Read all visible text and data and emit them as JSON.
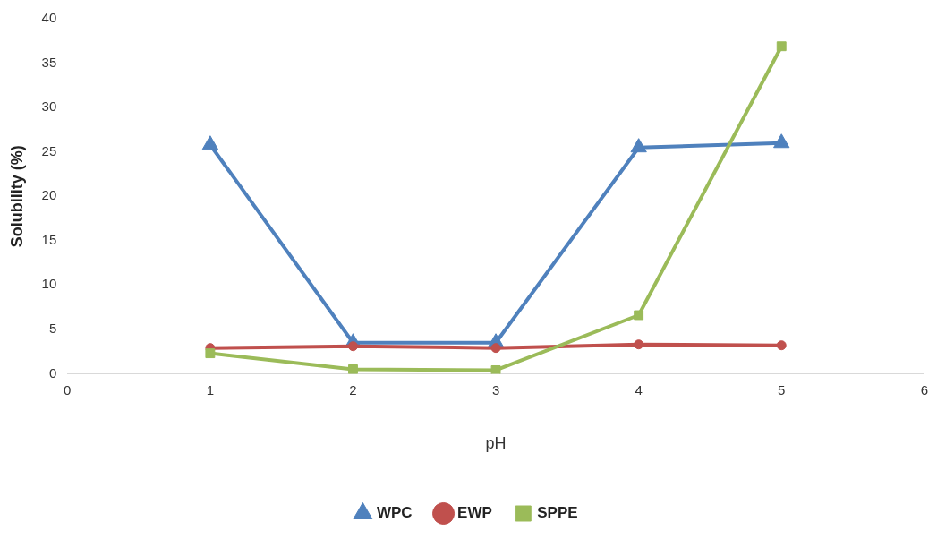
{
  "chart_data": {
    "type": "line",
    "xlabel": "pH",
    "ylabel": "Solubility (%)",
    "x": [
      1,
      2,
      3,
      4,
      5
    ],
    "xlim": [
      0,
      6
    ],
    "xticks": [
      0,
      1,
      2,
      3,
      4,
      5,
      6
    ],
    "ylim": [
      0,
      40
    ],
    "yticks": [
      0,
      5,
      10,
      15,
      20,
      25,
      30,
      35,
      40
    ],
    "grid": false,
    "legend": "bottom",
    "line_style": "solid",
    "series": [
      {
        "name": "WPC",
        "color": "#4f81bd",
        "marker": "triangle",
        "values": [
          25.8,
          3.5,
          3.5,
          25.5,
          26.0
        ]
      },
      {
        "name": "EWP",
        "color": "#c0504d",
        "marker": "circle",
        "values": [
          2.9,
          3.1,
          2.9,
          3.3,
          3.2
        ]
      },
      {
        "name": "SPPE",
        "color": "#9bbb59",
        "marker": "square",
        "values": [
          2.3,
          0.5,
          0.4,
          6.6,
          36.9
        ]
      }
    ]
  }
}
